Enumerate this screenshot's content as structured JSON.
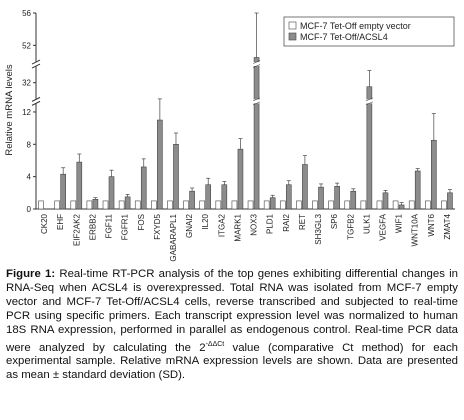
{
  "chart_data": {
    "type": "bar",
    "y_label": "Relative mRNA levels",
    "categories": [
      "CK20",
      "EHF",
      "EIF2AK2",
      "ERBB2",
      "FGF11",
      "FGFR1",
      "FOS",
      "FXYD5",
      "GABARAPL1",
      "GNAI2",
      "IL20",
      "ITGA2",
      "MARK1",
      "NOX3",
      "PLD1",
      "RAI2",
      "RET",
      "SH3GL3",
      "SP6",
      "TGFB2",
      "ULK1",
      "VEGFA",
      "WIF1",
      "WNT10A",
      "WNT6",
      "ZMAT4"
    ],
    "series": [
      {
        "name": "MCF-7 Tet-Off empty vector",
        "color": "#ffffff",
        "values": [
          1,
          1,
          1,
          1,
          1,
          1,
          1,
          1,
          1,
          1,
          1,
          1,
          1,
          1,
          1,
          1,
          1,
          1,
          1,
          1,
          1,
          1,
          1,
          1,
          1,
          1
        ]
      },
      {
        "name": "MCF-7 Tet-Off/ACSL4",
        "color": "#8c8c8c",
        "values": [
          0,
          4.3,
          5.8,
          1.2,
          4.0,
          1.5,
          5.2,
          11,
          8,
          2.2,
          3,
          3,
          7.4,
          50.5,
          1.4,
          3,
          5.5,
          2.7,
          2.8,
          2.2,
          31.5,
          2,
          0.5,
          4.7,
          8.5,
          2
        ],
        "errors": [
          0,
          0.8,
          1,
          0.2,
          0.8,
          0.3,
          1,
          2.2,
          1.4,
          0.4,
          0.8,
          0.4,
          1.3,
          5.5,
          0.3,
          0.5,
          1.1,
          0.4,
          0.4,
          0.3,
          2,
          0.3,
          0.3,
          0.3,
          3.3,
          0.4
        ]
      }
    ],
    "ylim": [
      0,
      56
    ],
    "y_segments": [
      [
        0,
        13
      ],
      [
        30,
        34
      ],
      [
        50,
        56
      ]
    ],
    "yticks": [
      0,
      4,
      8,
      12,
      32,
      52,
      56
    ],
    "legend": "upper right"
  },
  "caption": {
    "label": "Figure 1:",
    "before": " Real-time RT-PCR analysis of the top genes exhibiting differential changes in RNA-Seq when ACSL4 is overexpressed. Total RNA was isolated from MCF-7 empty vector and MCF-7 Tet-Off/ACSL4 cells, reverse transcribed and subjected to real-time PCR using specific primers. Each transcript expression level was normalized to human 18S RNA expression, performed in parallel as endogenous control. Real-time PCR data were analyzed by calculating the 2",
    "sup": "-ΔΔCt",
    "after": " value (comparative Ct method) for each experimental sample. Relative mRNA expression levels are shown. Data are presented as mean ± standard deviation (SD)."
  }
}
